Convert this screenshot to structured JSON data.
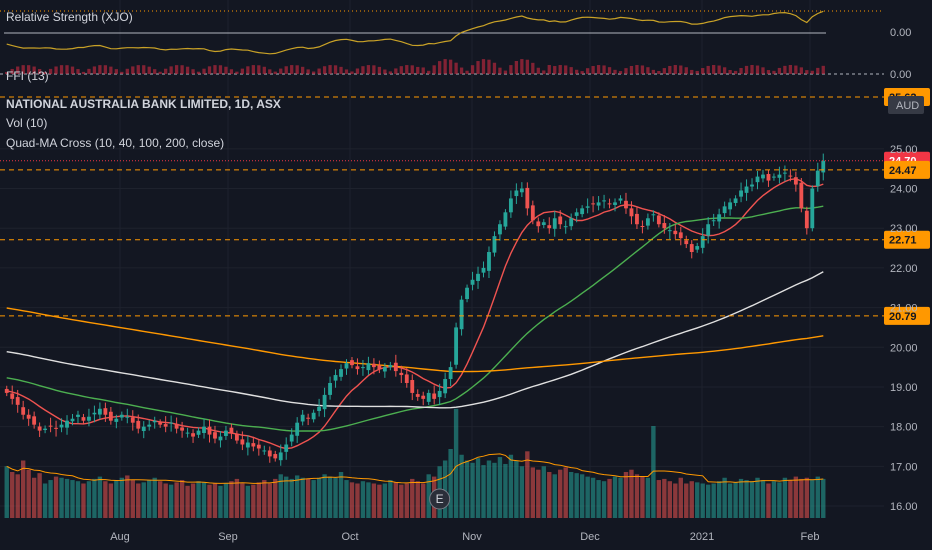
{
  "chart_data": {
    "type": "candlestick",
    "title": "NATIONAL AUSTRALIA BANK LIMITED, 1D, ASX",
    "currency": "AUD",
    "indicators": {
      "relative_strength": {
        "label": "Relative Strength (XJO)",
        "value": "0.00"
      },
      "ffi": {
        "label": "FFI (13)",
        "value": "0.00"
      },
      "volume": {
        "label": "Vol (10)"
      },
      "quad_ma": {
        "label": "Quad-MA Cross (10, 40, 100, 200, close)"
      }
    },
    "y_axis": {
      "ticks": [
        "25.00",
        "24.00",
        "23.00",
        "22.00",
        "21.00",
        "20.00",
        "19.00",
        "18.00",
        "17.00",
        "16.00"
      ],
      "ylim": [
        15.9,
        25.6
      ]
    },
    "x_axis": {
      "labels": [
        "Aug",
        "Sep",
        "Oct",
        "Nov",
        "Dec",
        "2021",
        "Feb"
      ]
    },
    "price_levels": [
      {
        "value": 25.62,
        "label": "25.62",
        "color": "#ff9800"
      },
      {
        "value": 24.7,
        "label": "24.70",
        "color": "#f23645",
        "current": true
      },
      {
        "value": 24.47,
        "label": "24.47",
        "color": "#ff9800"
      },
      {
        "value": 22.71,
        "label": "22.71",
        "color": "#ff9800"
      },
      {
        "value": 20.79,
        "label": "20.79",
        "color": "#ff9800"
      }
    ],
    "earnings_marker": {
      "label": "E",
      "date_index": 79
    },
    "colors": {
      "up": "#26a69a",
      "down": "#ef5350",
      "ma10": "#ef5350",
      "ma40": "#4caf50",
      "ma100": "#e0e0e0",
      "ma200": "#ff9800",
      "rs": "#c9a227"
    },
    "close": [
      18.85,
      18.7,
      18.55,
      18.3,
      18.2,
      18.05,
      17.9,
      17.95,
      18.0,
      17.95,
      18.05,
      18.15,
      18.2,
      18.3,
      18.15,
      18.25,
      18.35,
      18.45,
      18.3,
      18.15,
      18.2,
      18.3,
      18.25,
      18.1,
      17.95,
      18.0,
      18.05,
      18.15,
      18.05,
      18.0,
      18.1,
      17.95,
      17.9,
      17.85,
      17.75,
      17.9,
      18.0,
      17.8,
      17.7,
      17.75,
      17.9,
      17.85,
      17.65,
      17.55,
      17.6,
      17.5,
      17.45,
      17.4,
      17.25,
      17.2,
      17.35,
      17.55,
      17.8,
      18.1,
      18.3,
      18.2,
      18.35,
      18.5,
      18.8,
      19.1,
      19.3,
      19.45,
      19.6,
      19.55,
      19.45,
      19.5,
      19.6,
      19.5,
      19.45,
      19.5,
      19.55,
      19.4,
      19.3,
      19.1,
      18.85,
      18.75,
      18.7,
      18.85,
      18.7,
      18.9,
      19.2,
      19.5,
      20.5,
      21.2,
      21.5,
      21.7,
      21.85,
      22.0,
      22.4,
      22.8,
      23.1,
      23.4,
      23.75,
      23.95,
      24.0,
      23.5,
      23.2,
      23.05,
      23.15,
      23.0,
      23.25,
      23.1,
      23.05,
      23.25,
      23.4,
      23.5,
      23.55,
      23.6,
      23.65,
      23.7,
      23.6,
      23.65,
      23.75,
      23.5,
      23.3,
      23.1,
      23.05,
      23.25,
      23.35,
      23.1,
      23.0,
      22.95,
      22.85,
      22.75,
      22.6,
      22.4,
      22.55,
      22.8,
      23.1,
      23.2,
      23.35,
      23.55,
      23.65,
      23.75,
      23.95,
      24.05,
      24.1,
      24.3,
      24.35,
      24.2,
      24.3,
      24.35,
      24.4,
      24.3,
      24.1,
      23.5,
      23.0,
      24.0,
      24.45,
      24.7
    ],
    "volume": [
      0.45,
      0.4,
      0.38,
      0.5,
      0.42,
      0.35,
      0.39,
      0.3,
      0.33,
      0.36,
      0.35,
      0.34,
      0.33,
      0.32,
      0.3,
      0.32,
      0.34,
      0.36,
      0.32,
      0.3,
      0.33,
      0.35,
      0.37,
      0.33,
      0.3,
      0.31,
      0.33,
      0.35,
      0.32,
      0.3,
      0.29,
      0.31,
      0.33,
      0.28,
      0.3,
      0.32,
      0.31,
      0.29,
      0.3,
      0.28,
      0.3,
      0.32,
      0.34,
      0.3,
      0.28,
      0.29,
      0.31,
      0.33,
      0.3,
      0.34,
      0.38,
      0.36,
      0.34,
      0.37,
      0.35,
      0.34,
      0.33,
      0.35,
      0.38,
      0.36,
      0.35,
      0.4,
      0.33,
      0.31,
      0.3,
      0.32,
      0.31,
      0.3,
      0.29,
      0.3,
      0.33,
      0.31,
      0.29,
      0.3,
      0.34,
      0.32,
      0.3,
      0.38,
      0.36,
      0.45,
      0.5,
      0.6,
      0.95,
      0.55,
      0.5,
      0.48,
      0.52,
      0.46,
      0.5,
      0.48,
      0.53,
      0.47,
      0.55,
      0.5,
      0.45,
      0.58,
      0.44,
      0.42,
      0.45,
      0.4,
      0.38,
      0.42,
      0.44,
      0.4,
      0.39,
      0.38,
      0.36,
      0.35,
      0.33,
      0.32,
      0.34,
      0.36,
      0.35,
      0.4,
      0.42,
      0.38,
      0.36,
      0.35,
      0.8,
      0.33,
      0.34,
      0.32,
      0.3,
      0.35,
      0.3,
      0.32,
      0.31,
      0.3,
      0.29,
      0.3,
      0.32,
      0.35,
      0.3,
      0.31,
      0.34,
      0.33,
      0.32,
      0.35,
      0.33,
      0.3,
      0.32,
      0.31,
      0.35,
      0.33,
      0.36,
      0.34,
      0.35,
      0.33,
      0.36,
      0.34
    ]
  }
}
